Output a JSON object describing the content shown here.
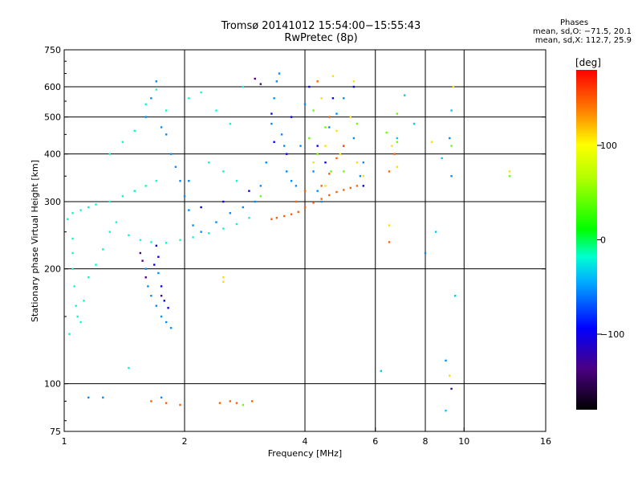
{
  "header": {
    "title_line1": "Tromsø 20141012 15:54:00−15:55:43",
    "title_line2": "RwPretec (8p)",
    "stats_title": "Phases",
    "stats_line1": "mean, sd,O: −71.5, 20.1",
    "stats_line2": "mean, sd,X: 112.7, 25.9"
  },
  "chart_data": {
    "type": "scatter",
    "xlabel": "Frequency [MHz]",
    "ylabel": "Stationary phase Virtual Height [km]",
    "xscale": "log",
    "yscale": "log",
    "xlim": [
      1,
      16
    ],
    "ylim": [
      75,
      750
    ],
    "x_ticks": [
      {
        "v": 1,
        "label": "1"
      },
      {
        "v": 2,
        "label": "2"
      },
      {
        "v": 4,
        "label": "4"
      },
      {
        "v": 6,
        "label": "6"
      },
      {
        "v": 8,
        "label": "8"
      },
      {
        "v": 10,
        "label": "10"
      },
      {
        "v": 16,
        "label": "16"
      }
    ],
    "x_grid": [
      2,
      4,
      6,
      8,
      10
    ],
    "y_ticks": [
      {
        "v": 75,
        "label": "75"
      },
      {
        "v": 100,
        "label": "100"
      },
      {
        "v": 200,
        "label": "200"
      },
      {
        "v": 300,
        "label": "300"
      },
      {
        "v": 400,
        "label": "400"
      },
      {
        "v": 500,
        "label": "500"
      },
      {
        "v": 600,
        "label": "600"
      },
      {
        "v": 750,
        "label": "750"
      }
    ],
    "y_grid": [
      100,
      200,
      300,
      400,
      500,
      600
    ],
    "colorbar": {
      "label": "[deg]",
      "range": [
        -180,
        180
      ],
      "ticks": [
        {
          "v": 100,
          "label": "100"
        },
        {
          "v": 0,
          "label": "0"
        },
        {
          "v": -100,
          "label": "−100"
        }
      ]
    },
    "series": [
      {
        "phase": -20,
        "points": [
          [
            1.02,
            270
          ],
          [
            1.05,
            280
          ],
          [
            1.1,
            285
          ],
          [
            1.15,
            290
          ],
          [
            1.2,
            295
          ],
          [
            1.3,
            300
          ],
          [
            1.4,
            310
          ],
          [
            1.5,
            320
          ],
          [
            1.6,
            330
          ],
          [
            1.7,
            340
          ],
          [
            1.05,
            240
          ],
          [
            1.05,
            220
          ],
          [
            1.05,
            200
          ],
          [
            1.06,
            180
          ],
          [
            1.07,
            160
          ],
          [
            1.1,
            145
          ],
          [
            1.03,
            135
          ],
          [
            1.08,
            150
          ],
          [
            1.12,
            165
          ],
          [
            1.15,
            190
          ],
          [
            1.2,
            205
          ],
          [
            1.25,
            225
          ],
          [
            1.3,
            250
          ],
          [
            1.35,
            265
          ],
          [
            1.45,
            245
          ],
          [
            1.55,
            238
          ],
          [
            1.65,
            235
          ],
          [
            1.8,
            234
          ],
          [
            1.95,
            238
          ],
          [
            2.1,
            242
          ],
          [
            2.3,
            248
          ],
          [
            2.5,
            255
          ],
          [
            2.7,
            262
          ],
          [
            2.9,
            272
          ],
          [
            1.3,
            400
          ],
          [
            1.4,
            430
          ],
          [
            1.5,
            460
          ],
          [
            1.6,
            540
          ],
          [
            1.7,
            590
          ],
          [
            1.8,
            520
          ],
          [
            2.05,
            560
          ],
          [
            2.2,
            580
          ],
          [
            2.4,
            520
          ],
          [
            2.6,
            480
          ],
          [
            2.8,
            600
          ],
          [
            2.3,
            380
          ],
          [
            2.5,
            360
          ],
          [
            2.7,
            340
          ],
          [
            1.45,
            110
          ]
        ]
      },
      {
        "phase": -60,
        "points": [
          [
            1.6,
            500
          ],
          [
            1.65,
            560
          ],
          [
            1.7,
            620
          ],
          [
            1.75,
            470
          ],
          [
            1.8,
            450
          ],
          [
            1.85,
            400
          ],
          [
            1.9,
            370
          ],
          [
            1.95,
            340
          ],
          [
            2.0,
            310
          ],
          [
            2.05,
            285
          ],
          [
            1.6,
            200
          ],
          [
            1.62,
            180
          ],
          [
            1.65,
            170
          ],
          [
            1.7,
            160
          ],
          [
            1.72,
            195
          ],
          [
            1.75,
            150
          ],
          [
            1.8,
            145
          ],
          [
            1.85,
            140
          ],
          [
            2.05,
            340
          ],
          [
            2.1,
            260
          ],
          [
            2.2,
            250
          ],
          [
            2.4,
            265
          ],
          [
            2.6,
            280
          ],
          [
            2.8,
            290
          ],
          [
            3.0,
            300
          ],
          [
            3.1,
            330
          ],
          [
            3.2,
            380
          ],
          [
            3.3,
            480
          ],
          [
            3.35,
            560
          ],
          [
            3.4,
            620
          ],
          [
            3.45,
            650
          ],
          [
            3.5,
            450
          ],
          [
            3.55,
            420
          ],
          [
            3.6,
            360
          ],
          [
            3.7,
            340
          ],
          [
            3.8,
            330
          ],
          [
            3.9,
            420
          ],
          [
            4.0,
            540
          ],
          [
            4.2,
            360
          ],
          [
            4.3,
            320
          ],
          [
            4.4,
            300
          ],
          [
            4.6,
            470
          ],
          [
            4.8,
            510
          ],
          [
            5.0,
            560
          ],
          [
            5.3,
            440
          ],
          [
            5.5,
            350
          ],
          [
            5.6,
            380
          ],
          [
            8.0,
            220
          ],
          [
            9.0,
            115
          ],
          [
            9.2,
            440
          ],
          [
            9.3,
            350
          ],
          [
            1.15,
            92
          ],
          [
            1.25,
            92
          ],
          [
            1.75,
            92
          ]
        ]
      },
      {
        "phase": -100,
        "points": [
          [
            1.7,
            230
          ],
          [
            1.72,
            215
          ],
          [
            1.68,
            205
          ],
          [
            1.75,
            180
          ],
          [
            1.78,
            165
          ],
          [
            1.82,
            158
          ],
          [
            2.2,
            290
          ],
          [
            2.5,
            300
          ],
          [
            2.9,
            320
          ],
          [
            3.3,
            510
          ],
          [
            3.35,
            430
          ],
          [
            3.6,
            400
          ],
          [
            3.7,
            500
          ],
          [
            4.1,
            600
          ],
          [
            4.3,
            420
          ],
          [
            4.5,
            380
          ],
          [
            4.7,
            560
          ],
          [
            5.0,
            420
          ],
          [
            5.3,
            600
          ],
          [
            5.6,
            330
          ]
        ]
      },
      {
        "phase": -140,
        "points": [
          [
            1.55,
            220
          ],
          [
            1.57,
            210
          ],
          [
            1.6,
            190
          ],
          [
            1.75,
            170
          ],
          [
            3.0,
            630
          ],
          [
            3.1,
            610
          ],
          [
            9.3,
            97
          ]
        ]
      },
      {
        "phase": 150,
        "points": [
          [
            3.3,
            270
          ],
          [
            3.4,
            272
          ],
          [
            3.55,
            275
          ],
          [
            3.7,
            278
          ],
          [
            3.85,
            282
          ],
          [
            4.0,
            290
          ],
          [
            4.2,
            298
          ],
          [
            4.4,
            305
          ],
          [
            4.6,
            312
          ],
          [
            4.8,
            318
          ],
          [
            5.0,
            322
          ],
          [
            5.2,
            326
          ],
          [
            5.4,
            330
          ],
          [
            4.4,
            330
          ],
          [
            4.6,
            355
          ],
          [
            4.8,
            390
          ],
          [
            5.0,
            420
          ],
          [
            4.0,
            320
          ],
          [
            3.8,
            300
          ],
          [
            1.65,
            90
          ],
          [
            1.8,
            89
          ],
          [
            1.95,
            88
          ],
          [
            2.45,
            89
          ],
          [
            2.6,
            90
          ],
          [
            2.7,
            89
          ],
          [
            2.95,
            90
          ],
          [
            6.5,
            235
          ],
          [
            4.3,
            620
          ],
          [
            4.6,
            500
          ],
          [
            6.7,
            400
          ],
          [
            6.5,
            360
          ]
        ]
      },
      {
        "phase": 110,
        "points": [
          [
            4.2,
            380
          ],
          [
            4.5,
            420
          ],
          [
            4.8,
            460
          ],
          [
            4.9,
            400
          ],
          [
            5.2,
            500
          ],
          [
            5.4,
            380
          ],
          [
            4.4,
            560
          ],
          [
            4.7,
            640
          ],
          [
            5.3,
            620
          ],
          [
            6.6,
            420
          ],
          [
            6.8,
            370
          ],
          [
            2.5,
            190
          ],
          [
            2.5,
            185
          ],
          [
            6.5,
            260
          ],
          [
            9.2,
            105
          ],
          [
            9.4,
            600
          ],
          [
            13.0,
            360
          ],
          [
            8.3,
            430
          ],
          [
            4.5,
            330
          ],
          [
            5.6,
            350
          ]
        ]
      },
      {
        "phase": 40,
        "points": [
          [
            4.1,
            440
          ],
          [
            4.3,
            400
          ],
          [
            4.5,
            470
          ],
          [
            4.65,
            360
          ],
          [
            5.0,
            360
          ],
          [
            5.4,
            480
          ],
          [
            6.4,
            455
          ],
          [
            6.8,
            430
          ],
          [
            6.8,
            510
          ],
          [
            3.1,
            310
          ],
          [
            2.8,
            88
          ],
          [
            13.0,
            350
          ],
          [
            9.3,
            420
          ],
          [
            4.2,
            520
          ]
        ]
      },
      {
        "phase": -40,
        "points": [
          [
            6.2,
            108
          ],
          [
            6.8,
            440
          ],
          [
            7.5,
            480
          ],
          [
            8.5,
            250
          ],
          [
            9.0,
            85
          ],
          [
            9.5,
            170
          ],
          [
            9.3,
            520
          ],
          [
            8.8,
            390
          ],
          [
            7.1,
            570
          ]
        ]
      }
    ]
  }
}
